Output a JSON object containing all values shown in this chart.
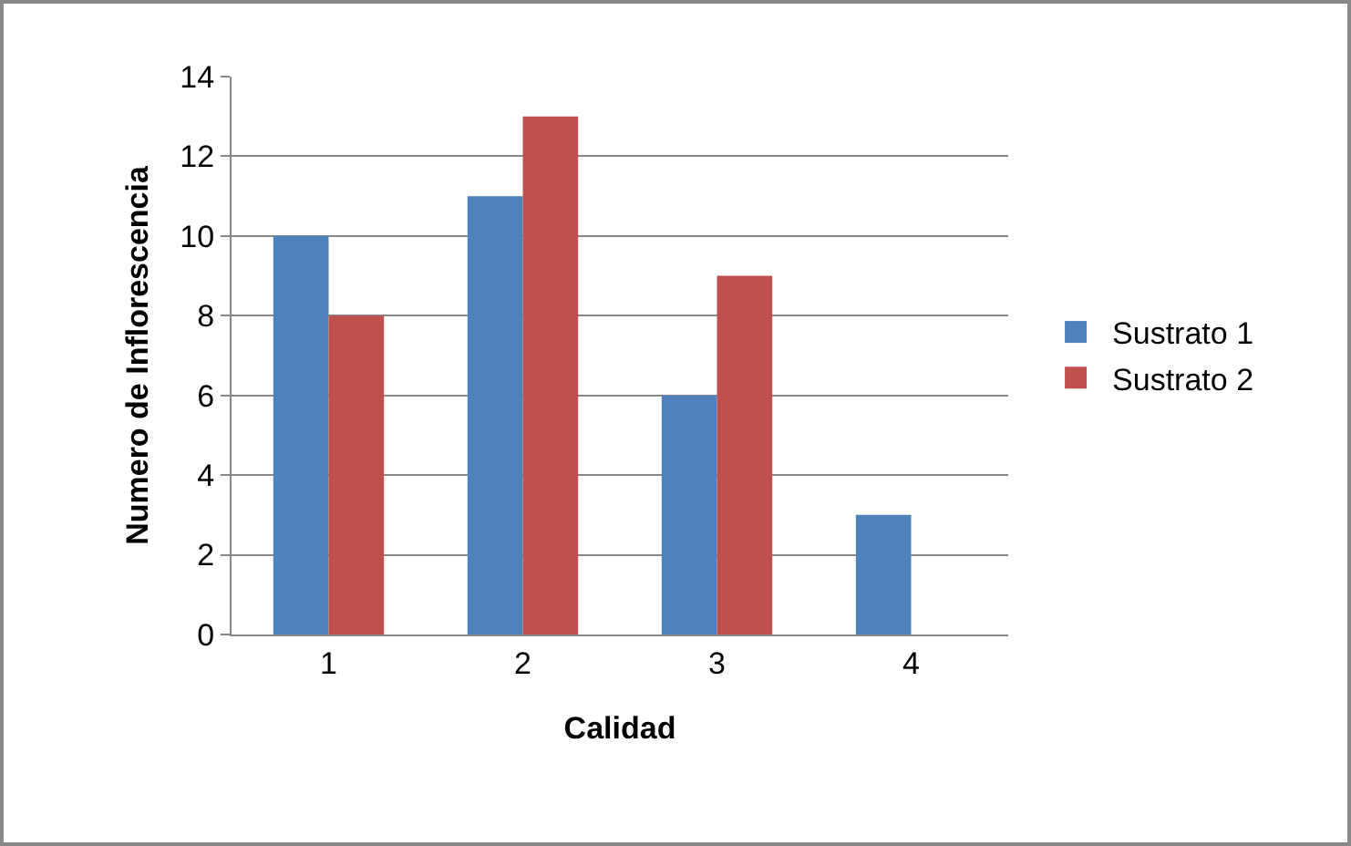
{
  "chart_data": {
    "type": "bar",
    "xlabel": "Calidad",
    "ylabel": "Numero de Inflorescencia",
    "categories": [
      "1",
      "2",
      "3",
      "4"
    ],
    "series": [
      {
        "name": "Sustrato 1",
        "color": "#4f81bd",
        "values": [
          10,
          11,
          6,
          3
        ]
      },
      {
        "name": "Sustrato 2",
        "color": "#c0504d",
        "values": [
          8,
          13,
          9,
          null
        ]
      }
    ],
    "ylim": [
      0,
      14
    ],
    "yticks": [
      0,
      2,
      4,
      6,
      8,
      10,
      12,
      14
    ],
    "grid": "y",
    "legend": "right"
  }
}
